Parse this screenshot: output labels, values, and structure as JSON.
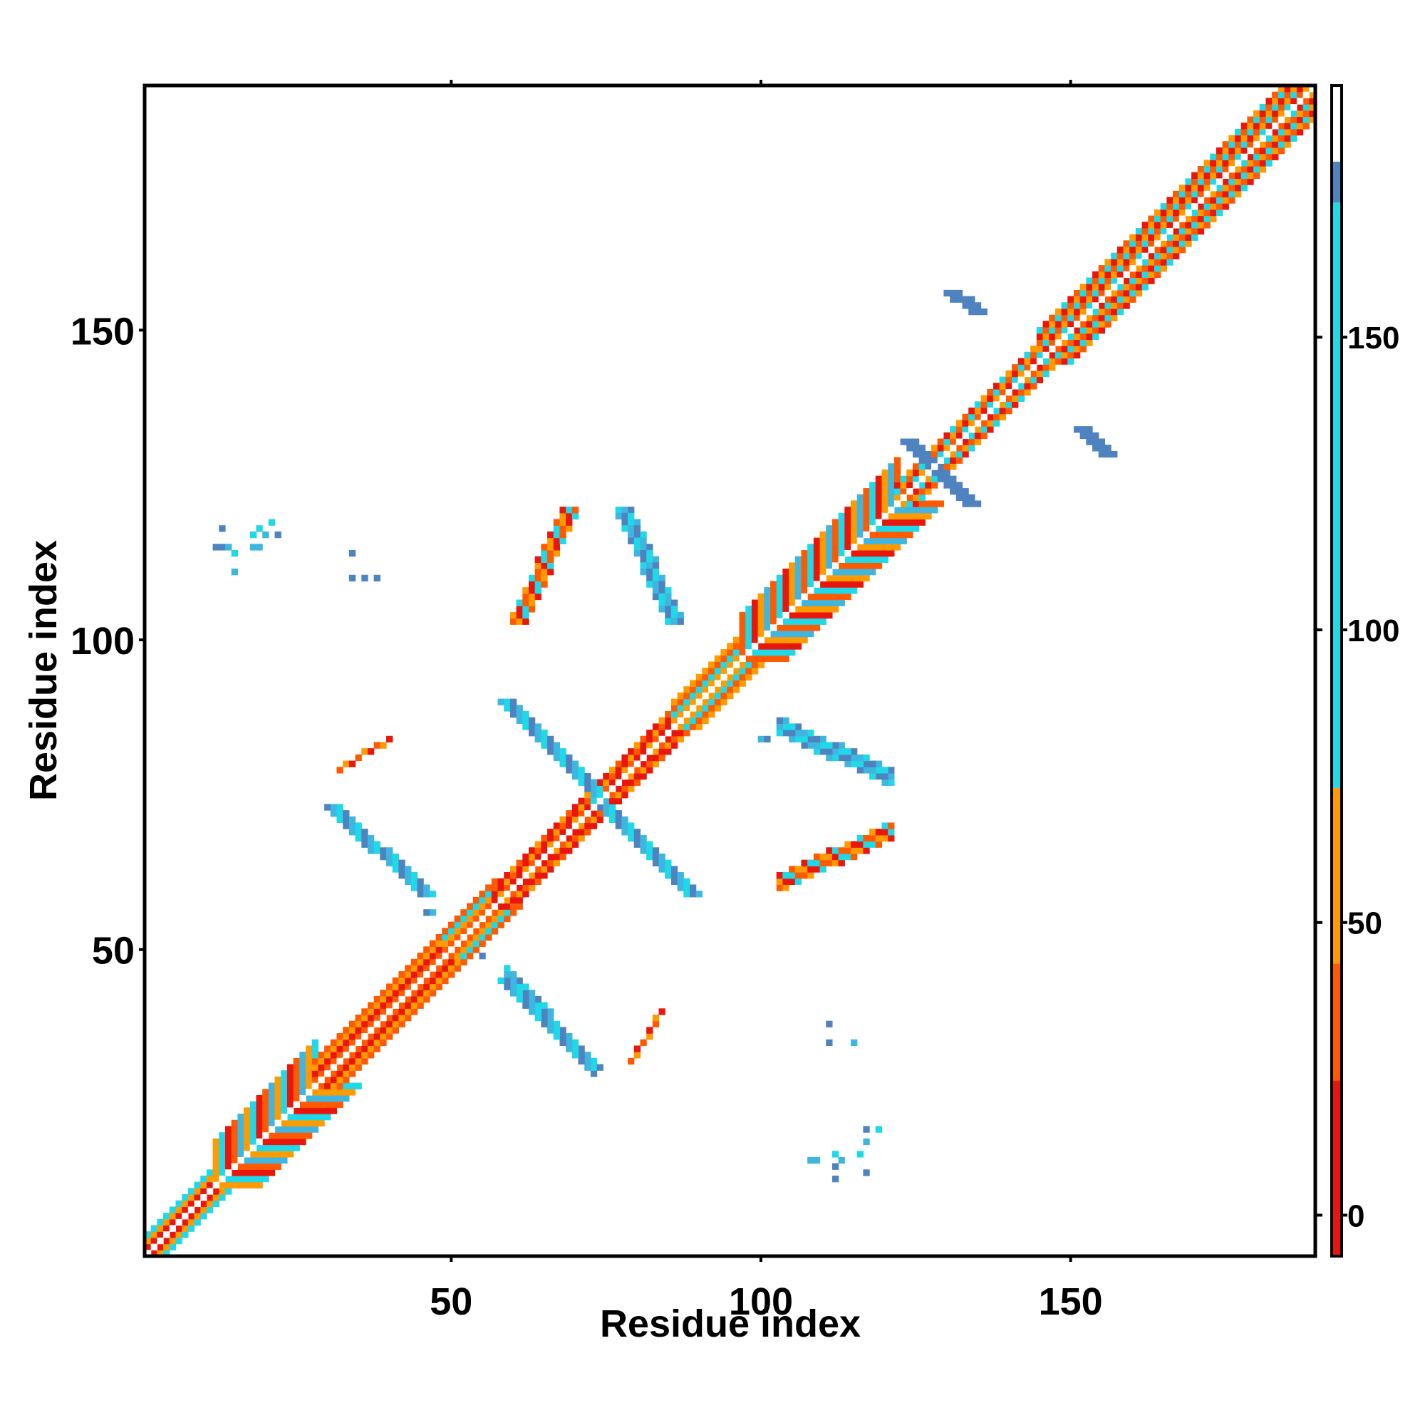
{
  "chart_data": {
    "type": "heatmap",
    "title": "",
    "xlabel": "Residue index",
    "ylabel": "Residue index",
    "xlim": [
      1,
      189
    ],
    "ylim": [
      1,
      189
    ],
    "x_ticks": [
      50,
      100,
      150
    ],
    "y_ticks": [
      50,
      100,
      150
    ],
    "grid": false,
    "colorbar": {
      "ticks": [
        0,
        50,
        100,
        150
      ],
      "range": [
        -7,
        193
      ],
      "bands": [
        {
          "from": -7,
          "to": 23,
          "color": "#e8160c"
        },
        {
          "from": 23,
          "to": 43,
          "color": "#ff5a00"
        },
        {
          "from": 43,
          "to": 73,
          "color": "#ff9a00"
        },
        {
          "from": 73,
          "to": 173,
          "color": "#1fd8e8"
        },
        {
          "from": 173,
          "to": 180,
          "color": "#4f83bf"
        },
        {
          "from": 180,
          "to": 193,
          "color": "#ffffff"
        }
      ]
    },
    "colors": {
      "red": "#e8160c",
      "orange_red": "#ff5a00",
      "orange": "#ff9a00",
      "cyan": "#1fd8e8",
      "sky_blue": "#3fb6e0",
      "steel_blue": "#4f83bf",
      "white": "#ffffff"
    },
    "diagonal_band": {
      "cells_mirrored": true,
      "segments": [
        {
          "from": 1,
          "to": 12,
          "width": 3,
          "palette": [
            "cyan",
            "orange",
            "red"
          ]
        },
        {
          "from": 12,
          "to": 28,
          "width": 7,
          "palette": [
            "cyan",
            "orange_red",
            "orange",
            "red",
            "sky_blue"
          ]
        },
        {
          "from": 28,
          "to": 49,
          "width": 4,
          "palette": [
            "red",
            "orange_red",
            "orange"
          ]
        },
        {
          "from": 49,
          "to": 57,
          "width": 4,
          "palette": [
            "cyan",
            "orange",
            "orange_red"
          ]
        },
        {
          "from": 57,
          "to": 86,
          "width": 3,
          "palette": [
            "red",
            "red",
            "orange_red",
            "orange"
          ]
        },
        {
          "from": 86,
          "to": 97,
          "width": 4,
          "palette": [
            "cyan",
            "orange",
            "orange_red"
          ]
        },
        {
          "from": 97,
          "to": 122,
          "width": 7,
          "palette": [
            "cyan",
            "orange",
            "orange_red",
            "red",
            "sky_blue"
          ]
        },
        {
          "from": 122,
          "to": 145,
          "width": 3,
          "palette": [
            "red",
            "orange_red",
            "orange",
            "cyan"
          ]
        },
        {
          "from": 145,
          "to": 189,
          "width": 5,
          "palette": [
            "cyan",
            "orange",
            "orange_red",
            "red"
          ]
        }
      ]
    },
    "strands": [
      {
        "x1": 30,
        "y1": 73,
        "x2": 45,
        "y2": 59,
        "width": 3,
        "palette": [
          "steel_blue",
          "sky_blue",
          "cyan"
        ],
        "mirror": true
      },
      {
        "x1": 58,
        "y1": 90,
        "x2": 88,
        "y2": 59,
        "width": 3,
        "palette": [
          "steel_blue",
          "sky_blue",
          "cyan"
        ],
        "mirror": false
      },
      {
        "x1": 58,
        "y1": 45,
        "x2": 72,
        "y2": 31,
        "width": 3,
        "palette": [
          "steel_blue",
          "sky_blue",
          "cyan"
        ],
        "mirror": false
      },
      {
        "x1": 77,
        "y1": 121,
        "x2": 85,
        "y2": 103,
        "width": 3,
        "palette": [
          "cyan",
          "sky_blue",
          "steel_blue"
        ],
        "mirror": true
      },
      {
        "x1": 60,
        "y1": 103,
        "x2": 68,
        "y2": 121,
        "width": 3,
        "palette": [
          "orange_red",
          "orange",
          "red",
          "cyan"
        ],
        "mirror": true
      },
      {
        "x1": 32,
        "y1": 79,
        "x2": 40,
        "y2": 84,
        "width": 1,
        "palette": [
          "orange",
          "red",
          "orange_red"
        ],
        "mirror": true
      },
      {
        "x1": 123,
        "y1": 132,
        "x2": 133,
        "y2": 122,
        "width": 3,
        "palette": [
          "steel_blue"
        ],
        "mirror": false
      },
      {
        "x1": 130,
        "y1": 156,
        "x2": 134,
        "y2": 153,
        "width": 3,
        "palette": [
          "steel_blue"
        ],
        "mirror": false
      },
      {
        "x1": 151,
        "y1": 134,
        "x2": 155,
        "y2": 130,
        "width": 3,
        "palette": [
          "steel_blue"
        ],
        "mirror": false
      }
    ],
    "scatter_cells": [
      {
        "x": 13,
        "y": 118,
        "c": "steel_blue"
      },
      {
        "x": 12,
        "y": 115,
        "c": "steel_blue"
      },
      {
        "x": 13,
        "y": 115,
        "c": "steel_blue"
      },
      {
        "x": 14,
        "y": 115,
        "c": "sky_blue"
      },
      {
        "x": 15,
        "y": 114,
        "c": "cyan"
      },
      {
        "x": 15,
        "y": 111,
        "c": "sky_blue"
      },
      {
        "x": 18,
        "y": 117,
        "c": "cyan"
      },
      {
        "x": 19,
        "y": 118,
        "c": "cyan"
      },
      {
        "x": 20,
        "y": 117,
        "c": "sky_blue"
      },
      {
        "x": 21,
        "y": 119,
        "c": "cyan"
      },
      {
        "x": 22,
        "y": 117,
        "c": "steel_blue"
      },
      {
        "x": 18,
        "y": 115,
        "c": "sky_blue"
      },
      {
        "x": 19,
        "y": 115,
        "c": "sky_blue"
      },
      {
        "x": 34,
        "y": 114,
        "c": "steel_blue"
      },
      {
        "x": 34,
        "y": 110,
        "c": "steel_blue"
      },
      {
        "x": 36,
        "y": 110,
        "c": "steel_blue"
      },
      {
        "x": 38,
        "y": 110,
        "c": "steel_blue"
      },
      {
        "x": 111,
        "y": 38,
        "c": "steel_blue"
      },
      {
        "x": 111,
        "y": 35,
        "c": "steel_blue"
      },
      {
        "x": 115,
        "y": 35,
        "c": "sky_blue"
      },
      {
        "x": 108,
        "y": 16,
        "c": "sky_blue"
      },
      {
        "x": 112,
        "y": 17,
        "c": "cyan"
      },
      {
        "x": 112,
        "y": 15,
        "c": "steel_blue"
      },
      {
        "x": 112,
        "y": 13,
        "c": "steel_blue"
      },
      {
        "x": 113,
        "y": 16,
        "c": "sky_blue"
      },
      {
        "x": 116,
        "y": 17,
        "c": "cyan"
      },
      {
        "x": 117,
        "y": 19,
        "c": "sky_blue"
      },
      {
        "x": 117,
        "y": 21,
        "c": "steel_blue"
      },
      {
        "x": 119,
        "y": 21,
        "c": "cyan"
      },
      {
        "x": 117,
        "y": 14,
        "c": "steel_blue"
      },
      {
        "x": 109,
        "y": 16,
        "c": "sky_blue"
      },
      {
        "x": 46,
        "y": 56,
        "c": "steel_blue"
      },
      {
        "x": 47,
        "y": 56,
        "c": "sky_blue"
      },
      {
        "x": 55,
        "y": 49,
        "c": "steel_blue"
      },
      {
        "x": 100,
        "y": 84,
        "c": "sky_blue"
      },
      {
        "x": 101,
        "y": 84,
        "c": "steel_blue"
      }
    ]
  }
}
